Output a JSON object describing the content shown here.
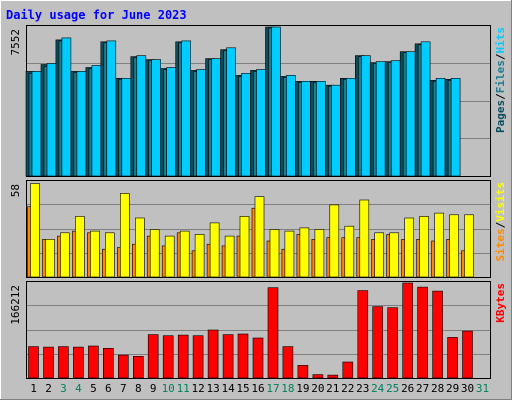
{
  "chart_data": {
    "type": "bar",
    "title": "Daily usage for June 2023",
    "categories": [
      "1",
      "2",
      "3",
      "4",
      "5",
      "6",
      "7",
      "8",
      "9",
      "10",
      "11",
      "12",
      "13",
      "14",
      "15",
      "16",
      "17",
      "18",
      "19",
      "20",
      "21",
      "22",
      "23",
      "24",
      "25",
      "26",
      "27",
      "28",
      "29",
      "30",
      "31"
    ],
    "weekend_days": [
      "3",
      "4",
      "10",
      "11",
      "17",
      "18",
      "24",
      "25",
      "31"
    ],
    "panels": [
      {
        "id": "hits",
        "scale_label": "7552",
        "ylim": [
          0,
          7552
        ],
        "series": [
          {
            "name": "Pages",
            "color": "#0a4e5d",
            "values": [
              5300,
              5650,
              6900,
              5300,
              5500,
              6800,
              4950,
              6050,
              5900,
              5450,
              6800,
              5350,
              5950,
              6400,
              5100,
              5350,
              7552,
              5050,
              4800,
              4800,
              4600,
              4950,
              6100,
              5750,
              5800,
              6300,
              6700,
              4850,
              4900,
              null,
              null
            ]
          },
          {
            "name": "Files",
            "color": "#1d7d90",
            "values": [
              5200,
              5550,
              6850,
              5250,
              5450,
              6750,
              4900,
              6000,
              5850,
              5400,
              6750,
              5300,
              5900,
              6350,
              5050,
              5300,
              7500,
              5000,
              4750,
              4750,
              4550,
              4900,
              6050,
              5700,
              5750,
              6250,
              6650,
              4800,
              4850,
              null,
              null
            ]
          },
          {
            "name": "Hits",
            "color": "#00ccff",
            "values": [
              5300,
              5700,
              7000,
              5300,
              5600,
              6850,
              4950,
              6100,
              5900,
              5500,
              6850,
              5400,
              5950,
              6500,
              5200,
              5400,
              7552,
              5100,
              4800,
              4800,
              4600,
              4950,
              6100,
              5800,
              5850,
              6300,
              6800,
              4950,
              4950,
              null,
              null
            ]
          }
        ],
        "legend": [
          "Pages",
          "/",
          "Files",
          "/",
          "Hits"
        ]
      },
      {
        "id": "visits",
        "scale_label": "58",
        "ylim": [
          0,
          58
        ],
        "series": [
          {
            "name": "Sites",
            "color": "#ff8800",
            "values": [
              43,
              23,
              25,
              28,
              27,
              17,
              18,
              20,
              25,
              19,
              27,
              16,
              20,
              19,
              25,
              42,
              22,
              17,
              26,
              23,
              24,
              24,
              24,
              23,
              26,
              23,
              23,
              22,
              23,
              16,
              null
            ]
          },
          {
            "name": "Visits",
            "color": "#ffff00",
            "values": [
              57,
              23,
              27,
              37,
              28,
              27,
              51,
              36,
              29,
              25,
              28,
              26,
              33,
              25,
              37,
              49,
              29,
              28,
              30,
              29,
              44,
              31,
              47,
              27,
              27,
              36,
              37,
              39,
              38,
              38,
              null
            ]
          }
        ],
        "legend": [
          "Sites",
          "/",
          "Visits"
        ]
      },
      {
        "id": "kbytes",
        "scale_label": "166212",
        "ylim": [
          0,
          166212
        ],
        "series": [
          {
            "name": "KBytes",
            "color": "#ff0000",
            "values": [
              55000,
              54000,
              55000,
              54000,
              56000,
              52000,
              40000,
              38000,
              76000,
              74000,
              75000,
              74000,
              84000,
              76000,
              77000,
              70000,
              158000,
              55000,
              22000,
              6000,
              5000,
              28000,
              153000,
              125000,
              123000,
              166212,
              159000,
              152000,
              71000,
              82000,
              null
            ]
          }
        ],
        "legend": [
          "KBytes"
        ]
      }
    ]
  }
}
